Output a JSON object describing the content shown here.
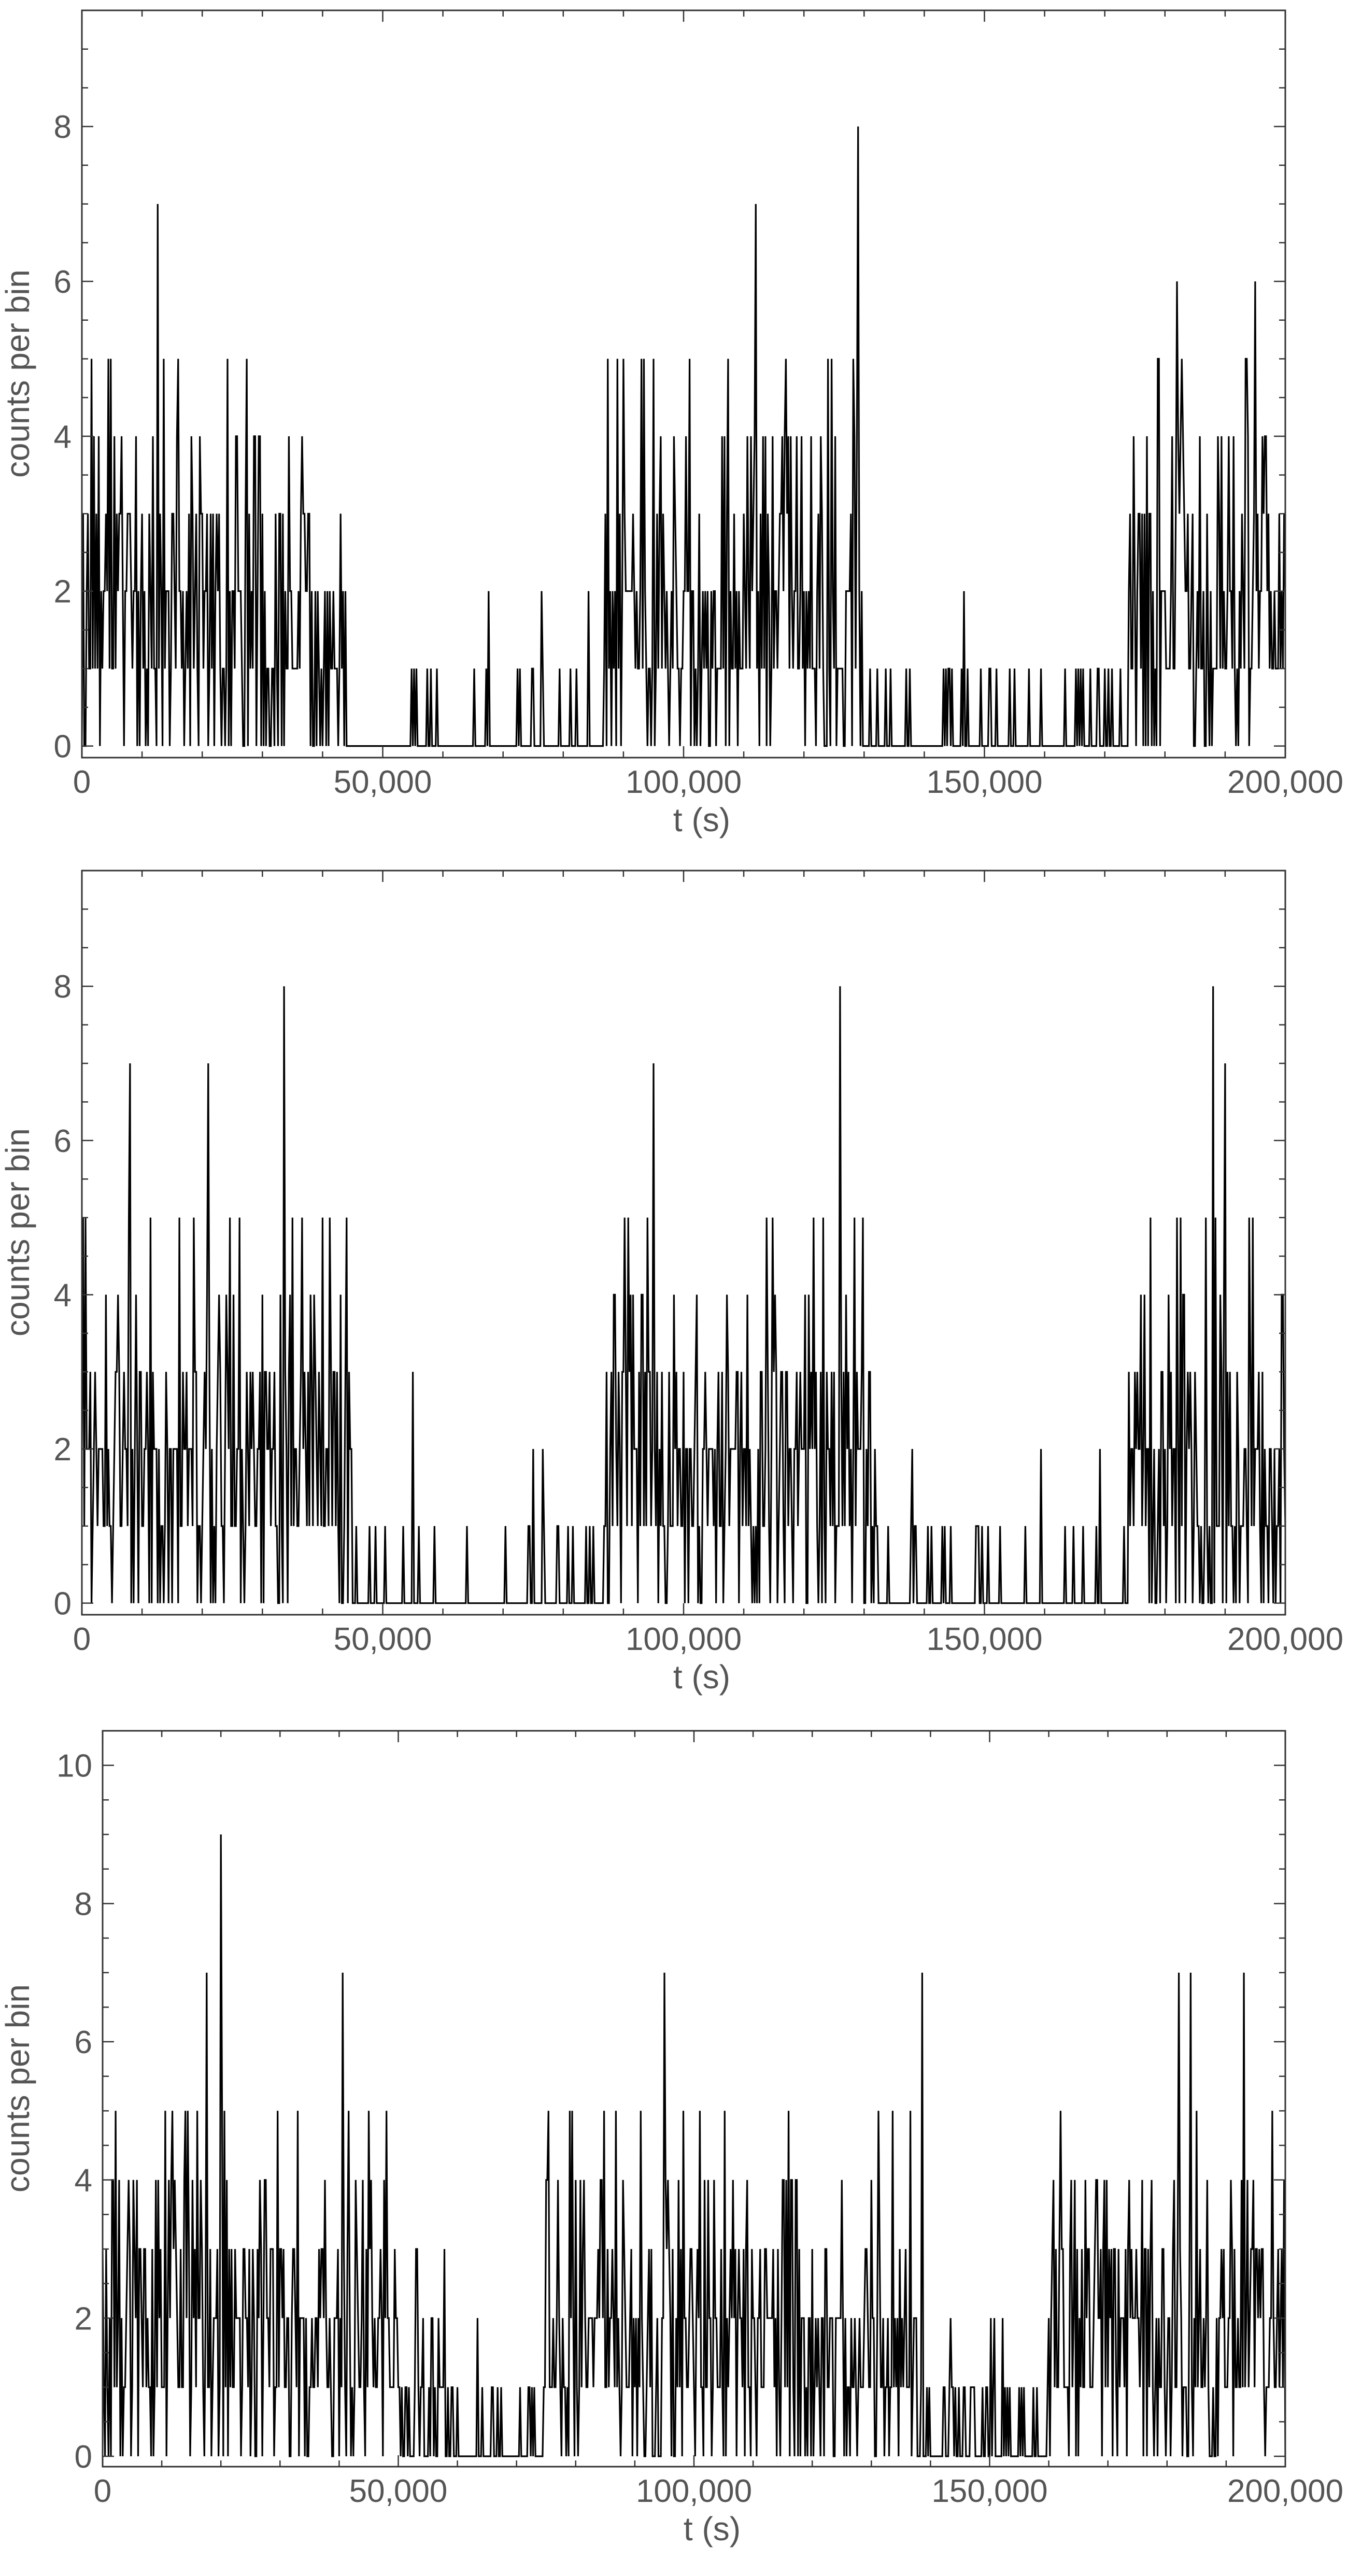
{
  "chart_data": [
    {
      "type": "line",
      "xlabel": "t (s)",
      "ylabel": "counts per bin",
      "xlim": [
        0,
        200000
      ],
      "ylim": [
        -0.15,
        9.5
      ],
      "xticks": [
        0,
        50000,
        100000,
        150000,
        200000
      ],
      "xtick_labels": [
        "0",
        "50,000",
        "100,000",
        "150,000",
        "200,000"
      ],
      "yticks": [
        0,
        2,
        4,
        6,
        8
      ],
      "ytick_labels": [
        "0",
        "2",
        "4",
        "6",
        "8"
      ],
      "bin_width": 200,
      "series": [
        {
          "x_start": 0,
          "x_step": 200,
          "envelope_segments": [
            {
              "from": 0,
              "to": 44000,
              "level": "high",
              "mean": 1.8
            },
            {
              "from": 44000,
              "to": 87000,
              "level": "low",
              "mean": 0.15
            },
            {
              "from": 87000,
              "to": 130000,
              "level": "high",
              "mean": 1.8
            },
            {
              "from": 130000,
              "to": 174000,
              "level": "low",
              "mean": 0.15
            },
            {
              "from": 174000,
              "to": 200000,
              "level": "high",
              "mean": 1.8
            }
          ],
          "peaks": [
            {
              "x": 12500,
              "y": 7
            },
            {
              "x": 112000,
              "y": 7
            },
            {
              "x": 129000,
              "y": 8
            },
            {
              "x": 182000,
              "y": 6
            },
            {
              "x": 195000,
              "y": 6
            }
          ]
        }
      ]
    },
    {
      "type": "line",
      "xlabel": "t (s)",
      "ylabel": "counts per bin",
      "xlim": [
        0,
        200000
      ],
      "ylim": [
        -0.15,
        9.5
      ],
      "xticks": [
        0,
        50000,
        100000,
        150000,
        200000
      ],
      "xtick_labels": [
        "0",
        "50,000",
        "100,000",
        "150,000",
        "200,000"
      ],
      "yticks": [
        0,
        2,
        4,
        6,
        8
      ],
      "ytick_labels": [
        "0",
        "2",
        "4",
        "6",
        "8"
      ],
      "bin_width": 200,
      "series": [
        {
          "x_start": 0,
          "x_step": 200,
          "envelope_segments": [
            {
              "from": 0,
              "to": 45000,
              "level": "high",
              "mean": 1.9
            },
            {
              "from": 45000,
              "to": 87000,
              "level": "low",
              "mean": 0.12
            },
            {
              "from": 87000,
              "to": 132000,
              "level": "high",
              "mean": 1.9
            },
            {
              "from": 132000,
              "to": 174000,
              "level": "low",
              "mean": 0.15
            },
            {
              "from": 174000,
              "to": 200000,
              "level": "high",
              "mean": 1.9
            }
          ],
          "peaks": [
            {
              "x": 8000,
              "y": 7
            },
            {
              "x": 21000,
              "y": 7
            },
            {
              "x": 33500,
              "y": 8
            },
            {
              "x": 55000,
              "y": 3
            },
            {
              "x": 76500,
              "y": 2
            },
            {
              "x": 95000,
              "y": 7
            },
            {
              "x": 126000,
              "y": 8
            },
            {
              "x": 188000,
              "y": 8
            },
            {
              "x": 190000,
              "y": 7
            }
          ]
        }
      ]
    },
    {
      "type": "line",
      "xlabel": "t (s)",
      "ylabel": "counts per bin",
      "xlim": [
        0,
        200000
      ],
      "ylim": [
        -0.15,
        10.5
      ],
      "xticks": [
        0,
        50000,
        100000,
        150000,
        200000
      ],
      "xtick_labels": [
        "0",
        "50,000",
        "100,000",
        "150,000",
        "200,000"
      ],
      "yticks": [
        0,
        2,
        4,
        6,
        8,
        10
      ],
      "ytick_labels": [
        "0",
        "2",
        "4",
        "6",
        "8",
        "10"
      ],
      "bin_width": 200,
      "series": [
        {
          "x_start": 0,
          "x_step": 200,
          "envelope_segments": [
            {
              "from": 0,
              "to": 50000,
              "level": "high",
              "mean": 1.9
            },
            {
              "from": 50000,
              "to": 58000,
              "level": "mid",
              "mean": 0.9
            },
            {
              "from": 58000,
              "to": 75000,
              "level": "low",
              "mean": 0.25
            },
            {
              "from": 75000,
              "to": 138000,
              "level": "high",
              "mean": 1.9
            },
            {
              "from": 138000,
              "to": 160000,
              "level": "low",
              "mean": 0.3
            },
            {
              "from": 160000,
              "to": 200000,
              "level": "high",
              "mean": 1.9
            }
          ],
          "peaks": [
            {
              "x": 17500,
              "y": 7
            },
            {
              "x": 20000,
              "y": 9
            },
            {
              "x": 40500,
              "y": 7
            },
            {
              "x": 95000,
              "y": 7
            },
            {
              "x": 138500,
              "y": 7
            },
            {
              "x": 182000,
              "y": 7
            },
            {
              "x": 184000,
              "y": 7
            },
            {
              "x": 193000,
              "y": 7
            }
          ]
        }
      ]
    }
  ]
}
